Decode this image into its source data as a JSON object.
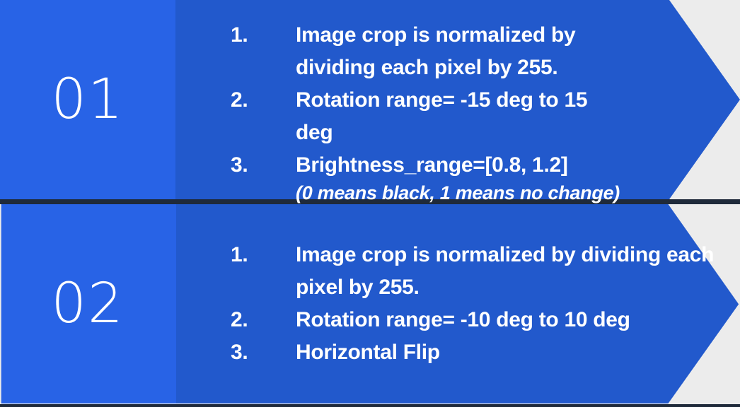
{
  "colors": {
    "background": "#ececec",
    "panel": "#2259cc",
    "number_block": "#2863e6",
    "divider": "#1f2a3a",
    "text": "#ffffff"
  },
  "rows": [
    {
      "number": "01",
      "steps": [
        {
          "marker": "1.",
          "text": "Image crop is normalized by dividing each pixel by 255."
        },
        {
          "marker": "2.",
          "text": "Rotation range= -15 deg to 15 deg"
        },
        {
          "marker": "3.",
          "text": "Brightness_range=[0.8, 1.2]",
          "note": "(0 means black, 1 means no change)"
        }
      ]
    },
    {
      "number": "02",
      "steps": [
        {
          "marker": "1.",
          "text": "Image crop is normalized by dividing each pixel by 255."
        },
        {
          "marker": "2.",
          "text": "Rotation range= -10 deg to 10 deg"
        },
        {
          "marker": "3.",
          "text": "Horizontal Flip"
        }
      ]
    }
  ]
}
